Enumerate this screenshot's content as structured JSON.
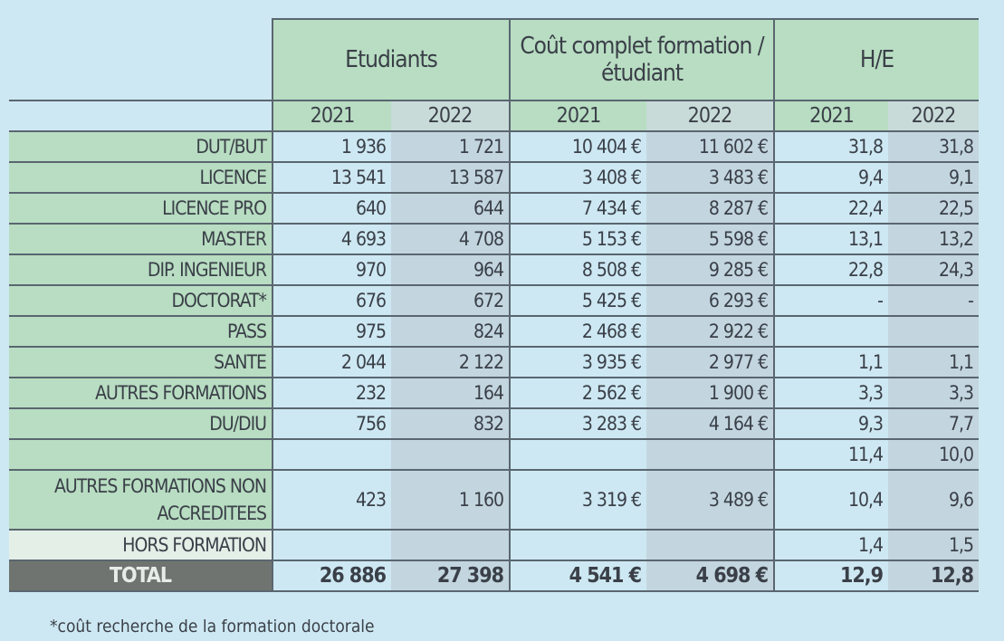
{
  "headers": {
    "groups": [
      "Etudiants",
      "Coût complet formation / étudiant",
      "H/E"
    ],
    "years": [
      "2021",
      "2022",
      "2021",
      "2022",
      "2021",
      "2022"
    ]
  },
  "rows": [
    {
      "label": "DUT/BUT",
      "values": [
        "1 936",
        "1 721",
        "10 404 €",
        "11 602 €",
        "31,8",
        "31,8"
      ]
    },
    {
      "label": "LICENCE",
      "values": [
        "13 541",
        "13 587",
        "3 408 €",
        "3 483 €",
        "9,4",
        "9,1"
      ]
    },
    {
      "label": "LICENCE PRO",
      "values": [
        "640",
        "644",
        "7 434 €",
        "8 287 €",
        "22,4",
        "22,5"
      ]
    },
    {
      "label": "MASTER",
      "values": [
        "4 693",
        "4 708",
        "5 153 €",
        "5 598 €",
        "13,1",
        "13,2"
      ]
    },
    {
      "label": "DIP. INGENIEUR",
      "values": [
        "970",
        "964",
        "8 508 €",
        "9 285 €",
        "22,8",
        "24,3"
      ]
    },
    {
      "label": "DOCTORAT*",
      "values": [
        "676",
        "672",
        "5 425 €",
        "6 293 €",
        "-",
        "-"
      ]
    },
    {
      "label": "PASS",
      "values": [
        "975",
        "824",
        "2 468 €",
        "2 922 €",
        "",
        ""
      ]
    },
    {
      "label": "SANTE",
      "values": [
        "2 044",
        "2 122",
        "3 935 €",
        "2 977 €",
        "1,1",
        "1,1"
      ]
    },
    {
      "label": "AUTRES FORMATIONS",
      "values": [
        "232",
        "164",
        "2 562 €",
        "1 900 €",
        "3,3",
        "3,3"
      ]
    },
    {
      "label": "DU/DIU",
      "values": [
        "756",
        "832",
        "3 283 €",
        "4 164 €",
        "9,3",
        "7,7"
      ]
    },
    {
      "label": "",
      "values": [
        "",
        "",
        "",
        "",
        "11,4",
        "10,0"
      ]
    },
    {
      "label": "AUTRES FORMATIONS NON ACCREDITEES",
      "values": [
        "423",
        "1 160",
        "3 319 €",
        "3 489 €",
        "10,4",
        "9,6"
      ]
    },
    {
      "label": "HORS FORMATION",
      "values": [
        "",
        "",
        "",
        "",
        "1,4",
        "1,5"
      ]
    }
  ],
  "total": {
    "label": "TOTAL",
    "values": [
      "26 886",
      "27 398",
      "4 541 €",
      "4 698 €",
      "12,9",
      "12,8"
    ]
  },
  "footnote": "*coût recherche de la formation doctorale"
}
